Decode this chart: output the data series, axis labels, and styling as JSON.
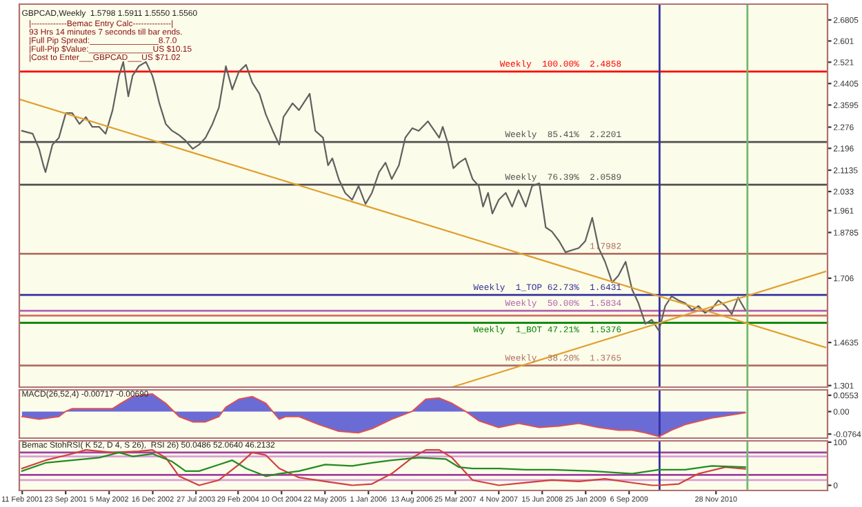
{
  "chart_data": [
    {
      "type": "line",
      "title": "GBPCAD,Weekly  1.5798 1.5911 1.5550 1.5560",
      "annotations": [
        "|-------------Bemac Entry Calc--------------|",
        "93 Hrs 14 minutes 7 seconds till bar ends.",
        "|Full Pip Spread:_______________8.7.0",
        "|Full-Pip $Value:______________US $10.15",
        "|Cost to Enter___GBPCAD___US $71.02"
      ],
      "series": [
        {
          "color": "#606060",
          "x": [
            "2001-02-10",
            "2001-04-06",
            "2001-05-09",
            "2001-05-31",
            "2001-06-11",
            "2001-07-17",
            "2001-08-19",
            "2001-09-24",
            "2001-10-27",
            "2001-12-03",
            "2002-01-05",
            "2002-02-07",
            "2002-03-15",
            "2002-04-17",
            "2002-05-23",
            "2002-06-25",
            "2002-07-17",
            "2002-08-12",
            "2002-09-03",
            "2002-10-05",
            "2002-11-11",
            "2002-12-14",
            "2002-12-28",
            "2003-01-19",
            "2003-02-21",
            "2003-03-26",
            "2003-05-01",
            "2003-06-03",
            "2003-07-10",
            "2003-08-12",
            "2003-09-14",
            "2003-10-20",
            "2003-11-22",
            "2003-12-28",
            "2004-01-30",
            "2004-03-04",
            "2004-04-10",
            "2004-05-12",
            "2004-06-18",
            "2004-07-21",
            "2004-08-26",
            "2004-09-28",
            "2004-10-20",
            "2004-12-06",
            "2005-01-08",
            "2005-03-04",
            "2005-04-02",
            "2005-05-12",
            "2005-06-07",
            "2005-06-29",
            "2005-08-01",
            "2005-09-03",
            "2005-10-09",
            "2005-11-11",
            "2005-12-17",
            "2006-01-19",
            "2006-02-25",
            "2006-03-30",
            "2006-05-01",
            "2006-06-07",
            "2006-07-10",
            "2006-08-15",
            "2006-09-17",
            "2006-11-04",
            "2007-01-01",
            "2007-01-19",
            "2007-02-17",
            "2007-03-15",
            "2007-04-13",
            "2007-05-16",
            "2007-06-22",
            "2007-07-24",
            "2007-08-15",
            "2007-09-10",
            "2007-10-02",
            "2007-11-04",
            "2007-12-10",
            "2008-01-12",
            "2008-02-14",
            "2008-03-22",
            "2008-04-24",
            "2008-05-31",
            "2008-07-03",
            "2008-08-04",
            "2008-09-10",
            "2008-10-13",
            "2008-12-21",
            "2009-01-23",
            "2009-02-28",
            "2009-04-02",
            "2009-05-05",
            "2009-06-11",
            "2009-07-13",
            "2009-08-19",
            "2009-09-21",
            "2009-10-24",
            "2009-11-29",
            "2010-01-01",
            "2010-02-07",
            "2010-03-11",
            "2010-04-13",
            "2010-05-20",
            "2010-06-22",
            "2010-07-28",
            "2010-08-30",
            "2010-10-02",
            "2010-11-07",
            "2010-12-10",
            "2011-01-16",
            "2011-02-17",
            "2011-03-22",
            "2011-04-28"
          ],
          "values": [
            2.262,
            2.251,
            2.194,
            2.132,
            2.106,
            2.21,
            2.236,
            2.329,
            2.329,
            2.288,
            2.314,
            2.277,
            2.277,
            2.251,
            2.34,
            2.47,
            2.522,
            2.392,
            2.47,
            2.506,
            2.522,
            2.47,
            2.433,
            2.366,
            2.288,
            2.262,
            2.246,
            2.225,
            2.194,
            2.21,
            2.236,
            2.288,
            2.35,
            2.506,
            2.418,
            2.485,
            2.511,
            2.444,
            2.402,
            2.324,
            2.262,
            2.21,
            2.314,
            2.366,
            2.34,
            2.402,
            2.262,
            2.236,
            2.132,
            2.158,
            2.08,
            2.028,
            2.002,
            2.054,
            1.986,
            2.028,
            2.106,
            2.142,
            2.08,
            2.132,
            2.236,
            2.272,
            2.262,
            2.298,
            2.236,
            2.277,
            2.21,
            2.121,
            2.142,
            2.158,
            2.08,
            2.054,
            1.976,
            2.028,
            1.95,
            2.002,
            2.028,
            1.976,
            2.038,
            1.976,
            2.054,
            2.064,
            1.898,
            1.882,
            1.846,
            1.804,
            1.82,
            1.846,
            1.934,
            1.82,
            1.768,
            1.69,
            1.716,
            1.768,
            1.664,
            1.612,
            1.534,
            1.549,
            1.508,
            1.601,
            1.638,
            1.622,
            1.612,
            1.586,
            1.601,
            1.575,
            1.591,
            1.622,
            1.601,
            1.57,
            1.633,
            1.586
          ]
        },
        {
          "color": "#e0a030",
          "x": [
            "2001-01-27",
            "2012-06-14"
          ],
          "values": [
            2.381,
            1.445
          ]
        },
        {
          "color": "#e0a030",
          "x": [
            "2007-03-08",
            "2012-06-14"
          ],
          "values": [
            1.295,
            1.731
          ]
        }
      ],
      "ref_lines": [
        {
          "axis": "y",
          "value": 2.4858,
          "label": "Weekly  100.00%  2.4858",
          "color": "#ff0000"
        },
        {
          "axis": "y",
          "value": 2.2201,
          "label": "Weekly  85.41%  2.2201",
          "color": "#505050"
        },
        {
          "axis": "y",
          "value": 2.0589,
          "label": "Weekly  76.39%  2.0589",
          "color": "#505050"
        },
        {
          "axis": "y",
          "value": 1.7982,
          "label": "1.7982",
          "color": "#b07060"
        },
        {
          "axis": "y",
          "value": 1.6431,
          "label": "Weekly  1_TOP 62.73%  1.6431",
          "color": "#3030a0"
        },
        {
          "axis": "y",
          "value": 1.5834,
          "label": "Weekly  50.00%  1.5834",
          "color": "#b060b0"
        },
        {
          "axis": "y",
          "value": 1.565,
          "color": "#d07060"
        },
        {
          "axis": "y",
          "value": 1.5376,
          "label": "Weekly  1_BOT 47.21%  1.5376",
          "color": "#008000"
        },
        {
          "axis": "y",
          "value": 1.3765,
          "label": "Weekly  38.20%  1.3765",
          "color": "#b07060"
        },
        {
          "axis": "x",
          "value": "2010-02-10",
          "color": "#3030a0"
        },
        {
          "axis": "x",
          "value": "2011-05-09",
          "color": "#70b870"
        }
      ],
      "xlim": [
        "2001-01-27",
        "2012-06-25"
      ],
      "ylim": [
        1.295,
        2.74
      ],
      "yticks": [
        2.6805,
        2.601,
        2.521,
        2.4405,
        2.3595,
        2.276,
        2.196,
        2.1135,
        2.033,
        1.961,
        1.8785,
        1.706,
        1.4635,
        1.301
      ],
      "tick_labels": "y",
      "legend": false
    },
    {
      "type": "area",
      "title": "MACD(26,52,4) -0.00717 -0.00690",
      "series": [
        {
          "color": "#6b6bd6",
          "x": [
            "2001-02-10",
            "2001-05-09",
            "2001-08-19",
            "2001-09-24",
            "2001-10-27",
            "2002-03-15",
            "2002-05-23",
            "2002-06-25",
            "2002-09-03",
            "2002-12-14",
            "2003-02-21",
            "2003-05-01",
            "2003-07-10",
            "2003-09-14",
            "2003-11-22",
            "2003-12-28",
            "2004-03-04",
            "2004-05-12",
            "2004-07-21",
            "2004-09-28",
            "2004-10-31",
            "2005-01-08",
            "2005-04-21",
            "2005-08-01",
            "2005-11-11",
            "2006-01-19",
            "2006-05-01",
            "2006-08-15",
            "2006-10-24",
            "2007-01-01",
            "2007-03-08",
            "2007-05-16",
            "2007-07-24",
            "2007-11-04",
            "2008-02-14",
            "2008-05-31",
            "2008-09-10",
            "2008-12-21",
            "2009-04-02",
            "2009-07-13",
            "2009-09-21",
            "2009-11-29",
            "2010-02-07",
            "2010-04-13",
            "2010-06-22",
            "2010-11-07",
            "2011-04-28"
          ],
          "values": [
            -0.017,
            -0.026,
            -0.017,
            0.001,
            0.01,
            0.01,
            0.01,
            0.024,
            0.051,
            0.06,
            0.028,
            -0.017,
            -0.035,
            -0.035,
            -0.017,
            0.015,
            0.042,
            0.051,
            0.028,
            -0.026,
            -0.017,
            -0.017,
            -0.044,
            -0.067,
            -0.072,
            -0.058,
            -0.026,
            0.001,
            0.042,
            0.046,
            0.028,
            0.001,
            -0.031,
            -0.054,
            -0.04,
            -0.054,
            -0.049,
            -0.04,
            -0.054,
            -0.063,
            -0.063,
            -0.072,
            -0.085,
            -0.063,
            -0.044,
            -0.022,
            -0.004
          ]
        }
      ],
      "ref_lines": [
        {
          "axis": "x",
          "value": "2010-02-10",
          "color": "#3030a0"
        },
        {
          "axis": "x",
          "value": "2011-05-09",
          "color": "#70b870"
        }
      ],
      "xlim": [
        "2001-01-27",
        "2012-06-25"
      ],
      "ylim": [
        -0.09,
        0.0735
      ],
      "yticks": [
        0.0553,
        {
          "value": 0,
          "label": "0.00"
        },
        -0.0764
      ],
      "tick_labels": "y",
      "legend": false
    },
    {
      "type": "line",
      "title": "Bemac StohRSI( K 52, D 4, S 26),  RSI 26) 50.0486 52.0640 46.2132",
      "series": [
        {
          "color": "#d04040",
          "x": [
            "2001-02-10",
            "2001-06-11",
            "2001-10-27",
            "2002-01-05",
            "2002-05-23",
            "2002-10-05",
            "2002-12-14",
            "2003-02-21",
            "2003-05-01",
            "2003-08-12",
            "2003-11-22",
            "2004-03-04",
            "2004-05-12",
            "2004-07-21",
            "2004-09-28",
            "2005-01-08",
            "2005-05-23",
            "2005-10-09",
            "2006-01-19",
            "2006-05-01",
            "2006-08-15",
            "2006-10-24",
            "2007-01-01",
            "2007-03-08",
            "2007-06-22",
            "2007-11-04",
            "2008-03-22",
            "2008-08-04",
            "2008-12-21",
            "2009-05-05",
            "2009-09-21",
            "2010-01-01",
            "2010-02-07",
            "2010-05-20",
            "2010-08-30",
            "2011-01-16",
            "2011-04-28"
          ],
          "values": [
            39,
            58,
            73,
            82,
            76,
            79,
            82,
            64,
            21,
            0,
            12,
            48,
            76,
            70,
            39,
            18,
            9,
            0,
            3,
            27,
            64,
            82,
            82,
            64,
            12,
            0,
            6,
            12,
            9,
            15,
            6,
            0,
            0,
            3,
            27,
            42,
            38
          ]
        },
        {
          "color": "#228b22",
          "x": [
            "2001-02-10",
            "2001-06-11",
            "2001-10-27",
            "2002-03-15",
            "2002-06-25",
            "2002-09-03",
            "2002-12-14",
            "2003-03-26",
            "2003-06-03",
            "2003-08-12",
            "2003-11-22",
            "2004-01-30",
            "2004-04-10",
            "2004-07-21",
            "2004-09-28",
            "2005-01-08",
            "2005-05-23",
            "2005-10-09",
            "2006-01-19",
            "2006-05-01",
            "2006-09-17",
            "2007-02-03",
            "2007-04-13",
            "2007-06-22",
            "2007-11-04",
            "2008-03-22",
            "2008-08-04",
            "2009-02-28",
            "2009-09-21",
            "2010-02-07",
            "2010-06-22",
            "2010-11-07",
            "2011-04-28"
          ],
          "values": [
            33,
            52,
            58,
            64,
            76,
            67,
            73,
            55,
            33,
            33,
            48,
            58,
            39,
            21,
            27,
            33,
            48,
            45,
            52,
            58,
            64,
            61,
            42,
            39,
            39,
            36,
            36,
            33,
            27,
            36,
            36,
            45,
            42
          ]
        }
      ],
      "ref_lines": [
        {
          "axis": "y",
          "value": 76,
          "color": "#a040a0"
        },
        {
          "axis": "y",
          "value": 67,
          "color": "#d8a0d8"
        },
        {
          "axis": "y",
          "value": 24,
          "color": "#a040a0"
        },
        {
          "axis": "y",
          "value": 12,
          "color": "#d8a0d8"
        },
        {
          "axis": "x",
          "value": "2010-02-10",
          "color": "#3030a0"
        },
        {
          "axis": "x",
          "value": "2011-05-09",
          "color": "#70b870"
        }
      ],
      "xlim": [
        "2001-01-27",
        "2012-06-25"
      ],
      "ylim": [
        -12,
        103
      ],
      "xticks": [
        {
          "value": "2001-02-11",
          "label": "11 Feb 2001"
        },
        {
          "value": "2001-09-23",
          "label": "23 Sep 2001"
        },
        {
          "value": "2002-05-05",
          "label": "5 May 2002"
        },
        {
          "value": "2002-12-16",
          "label": "16 Dec 2002"
        },
        {
          "value": "2003-07-27",
          "label": "27 Jul 2003"
        },
        {
          "value": "2004-02-29",
          "label": "29 Feb 2004"
        },
        {
          "value": "2004-10-10",
          "label": "10 Oct 2004"
        },
        {
          "value": "2005-05-22",
          "label": "22 May 2005"
        },
        {
          "value": "2006-01-01",
          "label": "1 Jan 2006"
        },
        {
          "value": "2006-08-13",
          "label": "13 Aug 2006"
        },
        {
          "value": "2007-03-25",
          "label": "25 Mar 2007"
        },
        {
          "value": "2007-11-04",
          "label": "4 Nov 2007"
        },
        {
          "value": "2008-06-15",
          "label": "15 Jun 2008"
        },
        {
          "value": "2009-01-25",
          "label": "25 Jan 2009"
        },
        {
          "value": "2009-09-06",
          "label": "6 Sep 2009"
        },
        {
          "value": "2010-11-28",
          "label": "28 Nov 2010"
        }
      ],
      "yticks": [
        100,
        0
      ],
      "legend": false
    }
  ]
}
